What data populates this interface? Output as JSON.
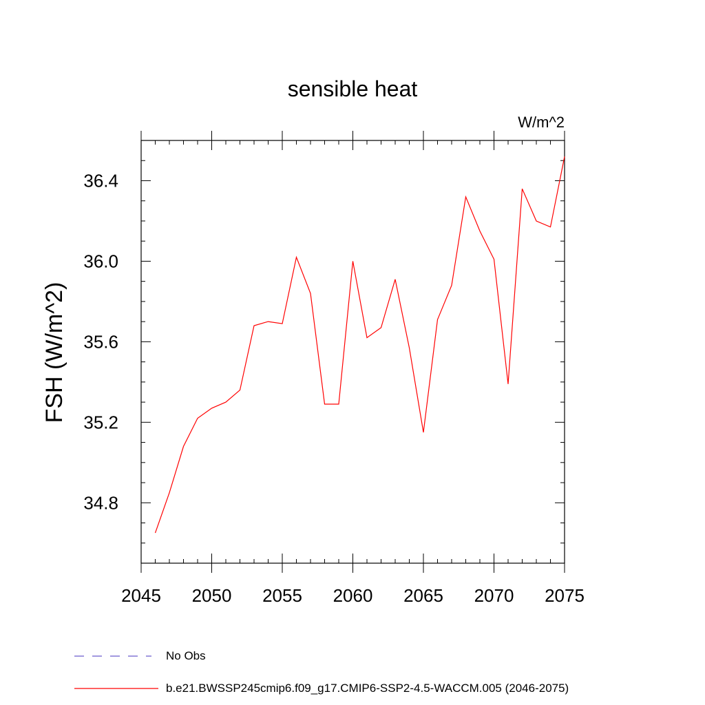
{
  "chart_data": {
    "type": "line",
    "title": "sensible heat",
    "units": "W/m^2",
    "ylabel": "FSH  (W/m^2)",
    "xlabel": "",
    "xlim": [
      2045,
      2075
    ],
    "ylim": [
      34.5,
      36.6
    ],
    "xticks": [
      2045,
      2050,
      2055,
      2060,
      2065,
      2070,
      2075
    ],
    "yticks": [
      34.8,
      35.2,
      35.6,
      36.0,
      36.4
    ],
    "ytick_labels": [
      "34.8",
      "35.2",
      "35.6",
      "36.0",
      "36.4"
    ],
    "grid": false,
    "series": [
      {
        "name": "b.e21.BWSSP245cmip6.f09_g17.CMIP6-SSP2-4.5-WACCM.005 (2046-2075)",
        "color": "#ff0000",
        "x": [
          2046,
          2047,
          2048,
          2049,
          2050,
          2051,
          2052,
          2053,
          2054,
          2055,
          2056,
          2057,
          2058,
          2059,
          2060,
          2061,
          2062,
          2063,
          2064,
          2065,
          2066,
          2067,
          2068,
          2069,
          2070,
          2071,
          2072,
          2073,
          2074,
          2075
        ],
        "values": [
          34.65,
          34.85,
          35.08,
          35.22,
          35.27,
          35.3,
          35.36,
          35.68,
          35.7,
          35.69,
          36.02,
          35.84,
          35.29,
          35.29,
          36.0,
          35.62,
          35.67,
          35.91,
          35.57,
          35.15,
          35.71,
          35.88,
          36.32,
          36.15,
          36.01,
          35.39,
          36.36,
          36.2,
          36.17,
          36.52
        ]
      }
    ],
    "legend": {
      "placement": "bottom-left",
      "items": [
        {
          "label": "No Obs",
          "color": "#6a5acd",
          "style": "dashed"
        },
        {
          "label": "b.e21.BWSSP245cmip6.f09_g17.CMIP6-SSP2-4.5-WACCM.005 (2046-2075)",
          "color": "#ff0000",
          "style": "solid"
        }
      ]
    }
  }
}
